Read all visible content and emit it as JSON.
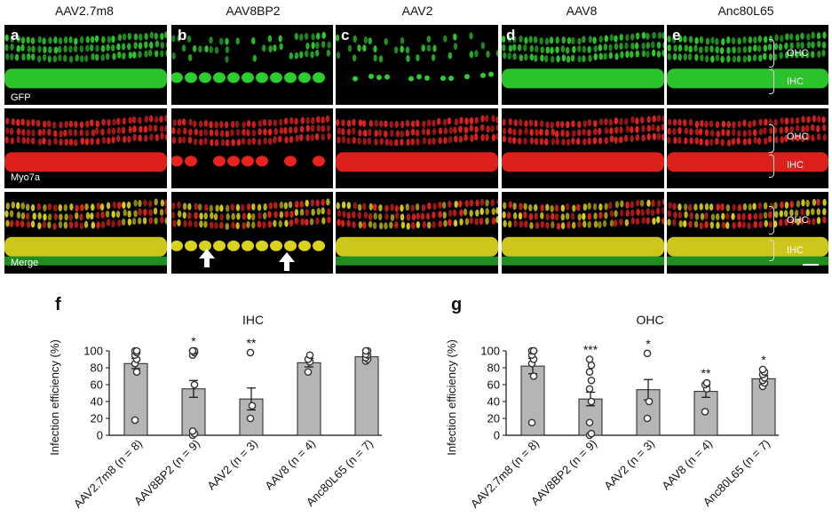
{
  "column_titles": [
    "AAV2.7m8",
    "AAV8BP2",
    "AAV2",
    "AAV8",
    "Anc80L65"
  ],
  "panel_letters": [
    "a",
    "b",
    "c",
    "d",
    "e"
  ],
  "row_labels": [
    "GFP",
    "Myo7a",
    "Merge"
  ],
  "bracket_labels": {
    "ohc": "OHC",
    "ihc": "IHC"
  },
  "colors": {
    "gfp": "#2ecc2e",
    "myo7a": "#e8231f",
    "merge": "#d9d21c",
    "bar": "#b5b5b5"
  },
  "chart_data": [
    {
      "letter": "f",
      "type": "bar",
      "title": "IHC",
      "ylabel": "Infection efficiency (%)",
      "ylim": [
        0,
        100
      ],
      "yticks": [
        "0",
        "20",
        "40",
        "60",
        "80",
        "100"
      ],
      "categories": [
        "AAV2.7m8 (n = 8)",
        "AAV8BP2 (n = 9)",
        "AAV2 (n = 3)",
        "AAV8 (n = 4)",
        "Anc80L65 (n = 7)"
      ],
      "values": [
        85,
        55,
        43,
        86,
        93
      ],
      "errors": [
        6,
        10,
        13,
        5,
        3
      ],
      "significance": [
        "",
        "*",
        "**",
        "",
        ""
      ],
      "points": [
        [
          18,
          75,
          85,
          90,
          95,
          98,
          100,
          100
        ],
        [
          0,
          2,
          5,
          60,
          95,
          98,
          100,
          100,
          100
        ],
        [
          20,
          35,
          98
        ],
        [
          75,
          87,
          90,
          95
        ],
        [
          88,
          90,
          92,
          95,
          96,
          100,
          100
        ]
      ]
    },
    {
      "letter": "g",
      "type": "bar",
      "title": "OHC",
      "ylabel": "Infection efficiency (%)",
      "ylim": [
        0,
        100
      ],
      "yticks": [
        "0",
        "20",
        "40",
        "60",
        "80",
        "100"
      ],
      "categories": [
        "AAV2.7m8 (n = 8)",
        "AAV8BP2 (n = 9)",
        "AAV2 (n = 3)",
        "AAV8 (n = 4)",
        "Anc80L65 (n = 7)"
      ],
      "values": [
        82,
        43,
        54,
        52,
        67
      ],
      "errors": [
        9,
        8,
        12,
        7,
        4
      ],
      "significance": [
        "",
        "***",
        "*",
        "**",
        "*"
      ],
      "points": [
        [
          15,
          70,
          85,
          90,
          95,
          100,
          100,
          100
        ],
        [
          0,
          2,
          15,
          40,
          55,
          65,
          75,
          83,
          90
        ],
        [
          20,
          40,
          97
        ],
        [
          28,
          55,
          60,
          62
        ],
        [
          58,
          62,
          65,
          68,
          72,
          75,
          78
        ]
      ]
    }
  ]
}
